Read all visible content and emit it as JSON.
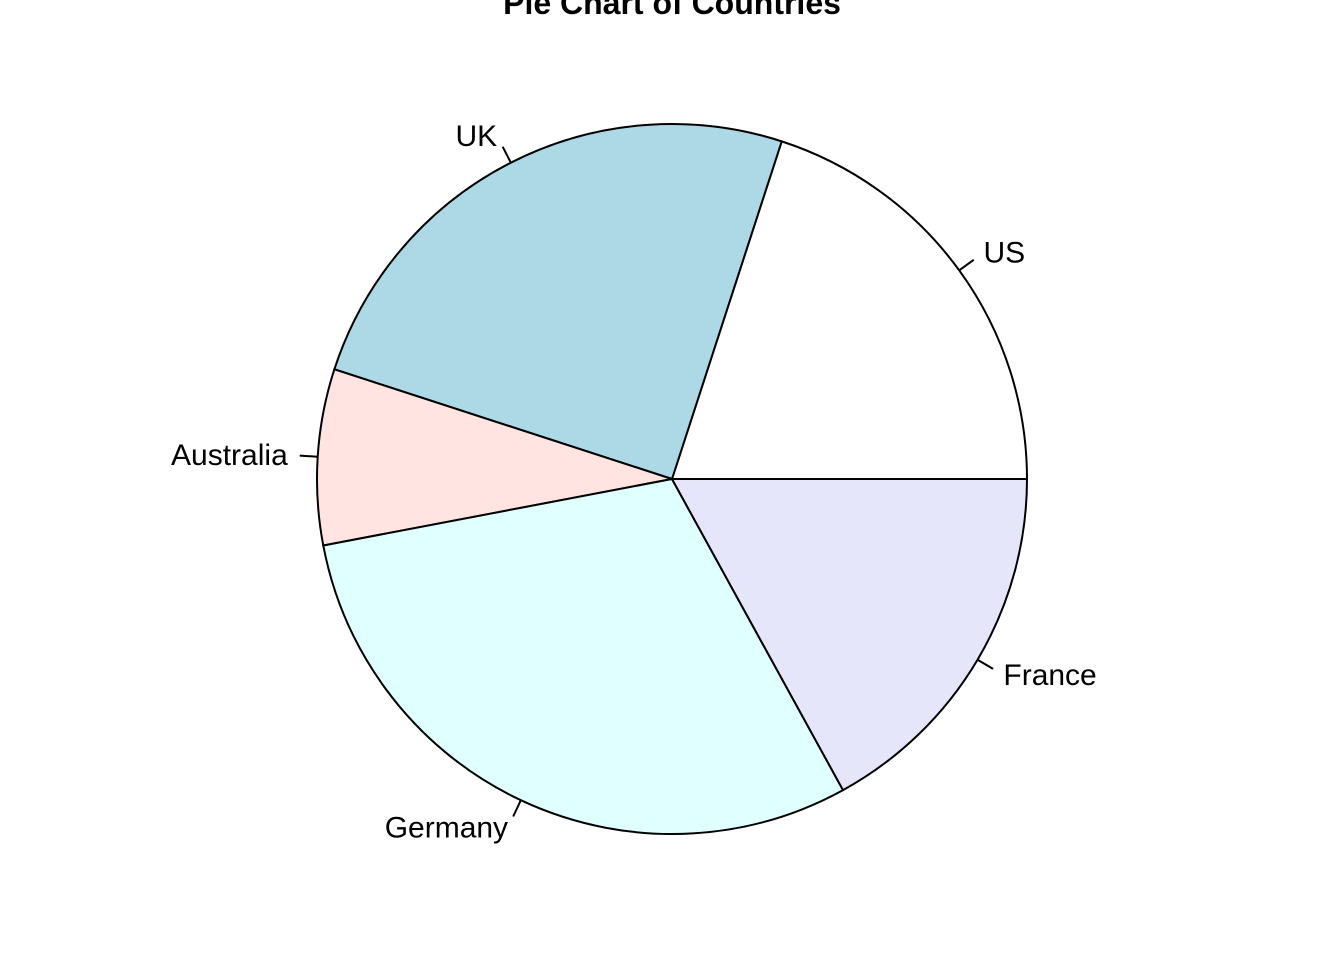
{
  "chart_data": {
    "type": "pie",
    "title": "Pie Chart of Countries",
    "slices": [
      {
        "label": "US",
        "value": 20,
        "color": "#FFFFFF"
      },
      {
        "label": "UK",
        "value": 25,
        "color": "#ADD8E6"
      },
      {
        "label": "Australia",
        "value": 8,
        "color": "#FFE4E1"
      },
      {
        "label": "Germany",
        "value": 30,
        "color": "#E0FFFF"
      },
      {
        "label": "France",
        "value": 17,
        "color": "#E6E6FA"
      }
    ],
    "direction": "counterclockwise",
    "start_angle_degrees": 0
  }
}
